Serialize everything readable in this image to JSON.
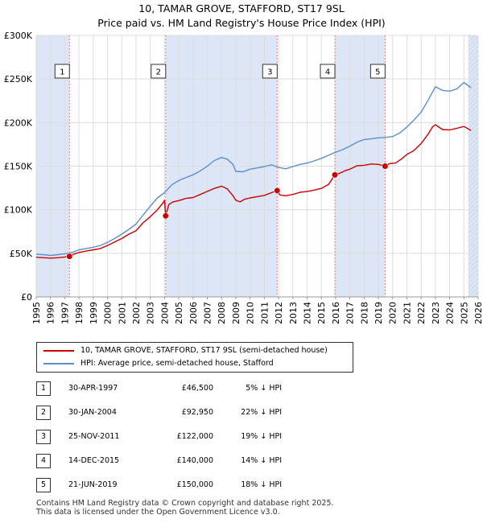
{
  "title_line1": "10, TAMAR GROVE, STAFFORD, ST17 9SL",
  "title_line2": "Price paid vs. HM Land Registry's House Price Index (HPI)",
  "colors": {
    "price": "#cc0000",
    "hpi": "#5b8fcf",
    "band": "#dde6f6",
    "grid": "#dddddd",
    "marker_line": "#e08080"
  },
  "legend": {
    "price_label": "10, TAMAR GROVE, STAFFORD, ST17 9SL (semi-detached house)",
    "hpi_label": "HPI: Average price, semi-detached house, Stafford"
  },
  "transactions": [
    {
      "num": "1",
      "date": "30-APR-1997",
      "price": "£46,500",
      "hpi": "5% ↓ HPI"
    },
    {
      "num": "2",
      "date": "30-JAN-2004",
      "price": "£92,950",
      "hpi": "22% ↓ HPI"
    },
    {
      "num": "3",
      "date": "25-NOV-2011",
      "price": "£122,000",
      "hpi": "19% ↓ HPI"
    },
    {
      "num": "4",
      "date": "14-DEC-2015",
      "price": "£140,000",
      "hpi": "14% ↓ HPI"
    },
    {
      "num": "5",
      "date": "21-JUN-2019",
      "price": "£150,000",
      "hpi": "18% ↓ HPI"
    }
  ],
  "footer_line1": "Contains HM Land Registry data © Crown copyright and database right 2025.",
  "footer_line2": "This data is licensed under the Open Government Licence v3.0.",
  "chart_data": {
    "type": "line",
    "title": "10, TAMAR GROVE, STAFFORD, ST17 9SL — Price paid vs. HM Land Registry's House Price Index (HPI)",
    "xlabel": "",
    "ylabel": "",
    "xlim": [
      1995,
      2026
    ],
    "ylim": [
      0,
      300000
    ],
    "x_ticks": [
      1995,
      1996,
      1997,
      1998,
      1999,
      2000,
      2001,
      2002,
      2003,
      2004,
      2005,
      2006,
      2007,
      2008,
      2009,
      2010,
      2011,
      2012,
      2013,
      2014,
      2015,
      2016,
      2017,
      2018,
      2019,
      2020,
      2021,
      2022,
      2023,
      2024,
      2025,
      2026
    ],
    "y_ticks": [
      {
        "value": 0,
        "label": "£0"
      },
      {
        "value": 50000,
        "label": "£50K"
      },
      {
        "value": 100000,
        "label": "£100K"
      },
      {
        "value": 150000,
        "label": "£150K"
      },
      {
        "value": 200000,
        "label": "£200K"
      },
      {
        "value": 250000,
        "label": "£250K"
      },
      {
        "value": 300000,
        "label": "£300K"
      }
    ],
    "grid": true,
    "shaded_ranges": [
      [
        1995,
        1997.33
      ],
      [
        2004.08,
        2011.9
      ],
      [
        2015.95,
        2019.47
      ],
      [
        2025.3,
        2026
      ]
    ],
    "hatched_range": [
      2025.3,
      2026
    ],
    "sales": [
      {
        "label": "1",
        "x": 1997.33,
        "y": 46500
      },
      {
        "label": "2",
        "x": 2004.08,
        "y": 92950
      },
      {
        "label": "3",
        "x": 2011.9,
        "y": 122000
      },
      {
        "label": "4",
        "x": 2015.95,
        "y": 140000
      },
      {
        "label": "5",
        "x": 2019.47,
        "y": 150000
      }
    ],
    "series": [
      {
        "name": "10, TAMAR GROVE, STAFFORD, ST17 9SL (semi-detached house)",
        "color": "#cc0000",
        "points": [
          [
            1995,
            45500
          ],
          [
            1995.5,
            45000
          ],
          [
            1996,
            44500
          ],
          [
            1996.5,
            45000
          ],
          [
            1997,
            45800
          ],
          [
            1997.33,
            46500
          ],
          [
            1997.7,
            49500
          ],
          [
            1998,
            51000
          ],
          [
            1998.5,
            52500
          ],
          [
            1999,
            54000
          ],
          [
            1999.5,
            55500
          ],
          [
            2000,
            59000
          ],
          [
            2000.5,
            63000
          ],
          [
            2001,
            67000
          ],
          [
            2001.5,
            72000
          ],
          [
            2002,
            76000
          ],
          [
            2002.5,
            85000
          ],
          [
            2003,
            92000
          ],
          [
            2003.5,
            100000
          ],
          [
            2003.9,
            108000
          ],
          [
            2004.0,
            111000
          ],
          [
            2004.08,
            92950
          ],
          [
            2004.3,
            106000
          ],
          [
            2004.6,
            109000
          ],
          [
            2005,
            110500
          ],
          [
            2005.5,
            113000
          ],
          [
            2006,
            114000
          ],
          [
            2006.5,
            117500
          ],
          [
            2007,
            121000
          ],
          [
            2007.5,
            124500
          ],
          [
            2008,
            127000
          ],
          [
            2008.4,
            124000
          ],
          [
            2008.8,
            116000
          ],
          [
            2009,
            111000
          ],
          [
            2009.3,
            109000
          ],
          [
            2009.6,
            112000
          ],
          [
            2010,
            113500
          ],
          [
            2010.5,
            115000
          ],
          [
            2011,
            116500
          ],
          [
            2011.5,
            119500
          ],
          [
            2011.9,
            122000
          ],
          [
            2012.1,
            117000
          ],
          [
            2012.5,
            116000
          ],
          [
            2013,
            117500
          ],
          [
            2013.5,
            120000
          ],
          [
            2014,
            121000
          ],
          [
            2014.5,
            122500
          ],
          [
            2015,
            124500
          ],
          [
            2015.5,
            129000
          ],
          [
            2015.95,
            140000
          ],
          [
            2016.3,
            142000
          ],
          [
            2016.7,
            145000
          ],
          [
            2017,
            146500
          ],
          [
            2017.5,
            150500
          ],
          [
            2018,
            151000
          ],
          [
            2018.5,
            152500
          ],
          [
            2019,
            152000
          ],
          [
            2019.47,
            150000
          ],
          [
            2019.8,
            153000
          ],
          [
            2020.2,
            153500
          ],
          [
            2020.6,
            158000
          ],
          [
            2021,
            163500
          ],
          [
            2021.5,
            168000
          ],
          [
            2022,
            176000
          ],
          [
            2022.5,
            187000
          ],
          [
            2022.8,
            195000
          ],
          [
            2023,
            197500
          ],
          [
            2023.5,
            192000
          ],
          [
            2024,
            191500
          ],
          [
            2024.5,
            193500
          ],
          [
            2025,
            195500
          ],
          [
            2025.5,
            191000
          ]
        ]
      },
      {
        "name": "HPI: Average price, semi-detached house, Stafford",
        "color": "#5b8fcf",
        "points": [
          [
            1995,
            49000
          ],
          [
            1995.5,
            48500
          ],
          [
            1996,
            47500
          ],
          [
            1996.5,
            48500
          ],
          [
            1997,
            49500
          ],
          [
            1997.5,
            51000
          ],
          [
            1998,
            54000
          ],
          [
            1998.5,
            55500
          ],
          [
            1999,
            57000
          ],
          [
            1999.5,
            59000
          ],
          [
            2000,
            62500
          ],
          [
            2000.5,
            67000
          ],
          [
            2001,
            72000
          ],
          [
            2001.5,
            77500
          ],
          [
            2002,
            83500
          ],
          [
            2002.5,
            94000
          ],
          [
            2003,
            104000
          ],
          [
            2003.5,
            113500
          ],
          [
            2004,
            119500
          ],
          [
            2004.5,
            128500
          ],
          [
            2005,
            133500
          ],
          [
            2005.5,
            137000
          ],
          [
            2006,
            140000
          ],
          [
            2006.5,
            144500
          ],
          [
            2007,
            150000
          ],
          [
            2007.5,
            156500
          ],
          [
            2008,
            160000
          ],
          [
            2008.4,
            158000
          ],
          [
            2008.8,
            152000
          ],
          [
            2009,
            144000
          ],
          [
            2009.5,
            143500
          ],
          [
            2010,
            146500
          ],
          [
            2010.5,
            148000
          ],
          [
            2011,
            149500
          ],
          [
            2011.5,
            151500
          ],
          [
            2012,
            148500
          ],
          [
            2012.5,
            147000
          ],
          [
            2013,
            149500
          ],
          [
            2013.5,
            152000
          ],
          [
            2014,
            153500
          ],
          [
            2014.5,
            156000
          ],
          [
            2015,
            159000
          ],
          [
            2015.5,
            162500
          ],
          [
            2016,
            166000
          ],
          [
            2016.5,
            169000
          ],
          [
            2017,
            173000
          ],
          [
            2017.5,
            177500
          ],
          [
            2018,
            180500
          ],
          [
            2018.5,
            181500
          ],
          [
            2019,
            182500
          ],
          [
            2019.5,
            183000
          ],
          [
            2020,
            184000
          ],
          [
            2020.5,
            188000
          ],
          [
            2021,
            195000
          ],
          [
            2021.5,
            203000
          ],
          [
            2022,
            212000
          ],
          [
            2022.5,
            226000
          ],
          [
            2022.8,
            235000
          ],
          [
            2023,
            241000
          ],
          [
            2023.5,
            237000
          ],
          [
            2024,
            236000
          ],
          [
            2024.5,
            238500
          ],
          [
            2025,
            246000
          ],
          [
            2025.5,
            240000
          ]
        ]
      }
    ]
  }
}
